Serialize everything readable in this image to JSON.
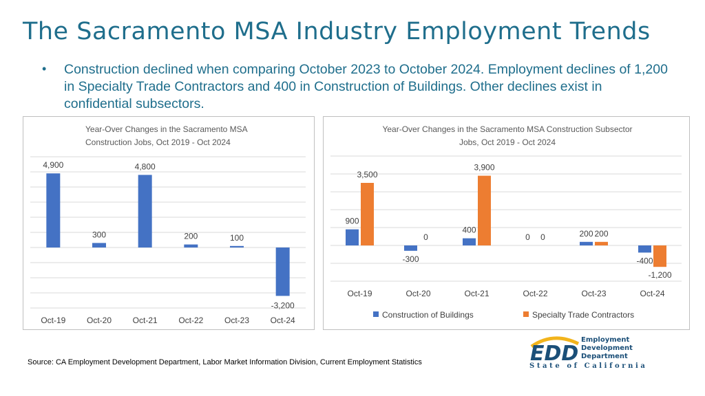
{
  "title": "The Sacramento MSA Industry Employment Trends",
  "bullet": "Construction declined when comparing October 2023 to October 2024. Employment declines of 1,200 in Specialty Trade Contractors and 400 in Construction of Buildings. Other declines exist in confidential subsectors.",
  "source": "Source: CA Employment Development Department, Labor Market Information Division, Current Employment Statistics",
  "logo": {
    "mark": "EDD",
    "line1": "Employment",
    "line2": "Development",
    "line3": "Department",
    "tagline": "State of California"
  },
  "colors": {
    "title": "#1f6e8c",
    "buildings": "#4472c4",
    "specialty": "#ed7d31",
    "logo_blue": "#1b4f78",
    "logo_gold": "#f2b41c"
  },
  "chart_data": [
    {
      "type": "bar",
      "title_lines": [
        "Year-Over Changes in the Sacramento MSA",
        "Construction Jobs, Oct 2019 - Oct 2024"
      ],
      "categories": [
        "Oct-19",
        "Oct-20",
        "Oct-21",
        "Oct-22",
        "Oct-23",
        "Oct-24"
      ],
      "values": [
        4900,
        300,
        4800,
        200,
        100,
        -3200
      ],
      "data_labels": [
        "4,900",
        "300",
        "4,800",
        "200",
        "100",
        "-3,200"
      ],
      "ylim": [
        -4000,
        6000
      ],
      "grid": true,
      "color": "#4472c4"
    },
    {
      "type": "bar",
      "title_lines": [
        "Year-Over Changes in the Sacramento MSA Construction Subsector",
        "Jobs, Oct 2019 - Oct 2024"
      ],
      "categories": [
        "Oct-19",
        "Oct-20",
        "Oct-21",
        "Oct-22",
        "Oct-23",
        "Oct-24"
      ],
      "series": [
        {
          "name": "Construction of Buildings",
          "values": [
            900,
            -300,
            400,
            0,
            200,
            -400
          ],
          "data_labels": [
            "900",
            "-300",
            "400",
            "0",
            "200",
            "-400"
          ],
          "color": "#4472c4"
        },
        {
          "name": "Specialty Trade Contractors",
          "values": [
            3500,
            0,
            3900,
            0,
            200,
            -1200
          ],
          "data_labels": [
            "3,500",
            "0",
            "3,900",
            "0",
            "200",
            "-1,200"
          ],
          "color": "#ed7d31"
        }
      ],
      "ylim": [
        -2000,
        5000
      ],
      "grid": true,
      "legend": "bottom"
    }
  ]
}
